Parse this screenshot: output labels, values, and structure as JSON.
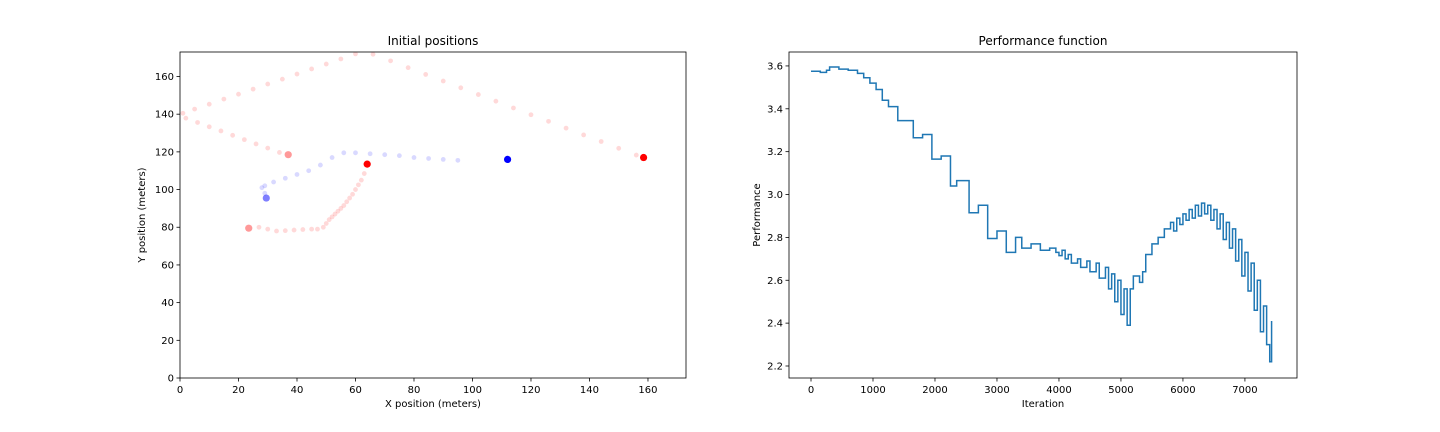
{
  "chart_data": [
    {
      "type": "scatter",
      "title": "Initial positions",
      "xlabel": "X position (meters)",
      "ylabel": "Y position (meters)",
      "xlim": [
        0,
        173
      ],
      "ylim": [
        0,
        173
      ],
      "xticks": [
        0,
        20,
        40,
        60,
        80,
        100,
        120,
        140,
        160
      ],
      "yticks": [
        0,
        20,
        40,
        60,
        80,
        100,
        120,
        140,
        160
      ],
      "series": [
        {
          "color": "#ff0000",
          "opacity": 0.15,
          "size": 2.4,
          "x": [
            34,
            30,
            26,
            22,
            18,
            14,
            10,
            6,
            2,
            1,
            5,
            10,
            15,
            20,
            25,
            30,
            35,
            40,
            45,
            50,
            55,
            60,
            66,
            72,
            78,
            84,
            90,
            96,
            102,
            108,
            114,
            120,
            126,
            132,
            138,
            144,
            150,
            156
          ],
          "values": [
            119.7,
            122,
            124.2,
            126.5,
            128.8,
            131.1,
            133.3,
            135.6,
            137.9,
            140.5,
            142.7,
            145.3,
            148,
            150.6,
            153.3,
            156,
            158.6,
            161.3,
            164,
            166.6,
            169.3,
            172,
            171.8,
            168.3,
            164.7,
            161.1,
            157.6,
            154,
            150.4,
            146.9,
            143.3,
            139.7,
            136.2,
            132.6,
            129,
            125.5,
            121.9,
            118.3
          ]
        },
        {
          "color": "#ff0000",
          "opacity": 0.15,
          "size": 2.4,
          "x": [
            27,
            30,
            33,
            36,
            39,
            42,
            45,
            47,
            49,
            50,
            51,
            52,
            53,
            54,
            55,
            56,
            57,
            58,
            59,
            60,
            61,
            62,
            63
          ],
          "values": [
            80,
            79,
            78,
            78.2,
            78.5,
            78.8,
            79,
            79,
            80,
            82,
            84,
            85.5,
            87,
            88.5,
            90,
            91.5,
            93.5,
            95.5,
            97.5,
            100,
            102.5,
            105,
            108.5
          ]
        },
        {
          "color": "#0000ff",
          "opacity": 0.15,
          "size": 2.4,
          "x": [
            29,
            28,
            29,
            32,
            36,
            40,
            44,
            48,
            52,
            56,
            60,
            65,
            70,
            75,
            80,
            85,
            90,
            95
          ],
          "values": [
            98,
            101,
            102,
            104,
            106,
            108,
            110,
            113,
            117,
            119.5,
            119.5,
            119,
            118.5,
            118,
            117,
            116.5,
            116,
            115.5
          ]
        },
        {
          "color": "#ff0000",
          "opacity": 0.4,
          "size": 3.6,
          "x": [
            37,
            23.5
          ],
          "values": [
            118.5,
            79.5
          ]
        },
        {
          "color": "#0000ff",
          "opacity": 0.5,
          "size": 3.6,
          "x": [
            29.5
          ],
          "values": [
            95.5
          ]
        },
        {
          "color": "#ff0000",
          "opacity": 1,
          "size": 3.6,
          "x": [
            64,
            158.5
          ],
          "values": [
            113.5,
            117
          ]
        },
        {
          "color": "#0000ff",
          "opacity": 1,
          "size": 3.6,
          "x": [
            112
          ],
          "values": [
            116
          ]
        }
      ]
    },
    {
      "type": "line",
      "drawstyle": "steps-post",
      "title": "Performance function",
      "xlabel": "Iteration",
      "ylabel": "Performance",
      "xlim": [
        -355,
        7840
      ],
      "ylim": [
        2.144,
        3.665
      ],
      "xticks": [
        0,
        1000,
        2000,
        3000,
        4000,
        5000,
        6000,
        7000
      ],
      "yticks": [
        2.2,
        2.4,
        2.6,
        2.8,
        {
          "value": 3,
          "label": "3.0"
        },
        3.2,
        3.4,
        3.6
      ],
      "series": [
        {
          "color": "#1f77b4",
          "x": [
            0,
            150,
            250,
            300,
            450,
            600,
            750,
            850,
            950,
            1050,
            1150,
            1250,
            1400,
            1650,
            1800,
            1950,
            2100,
            2250,
            2350,
            2550,
            2700,
            2850,
            3000,
            3150,
            3300,
            3400,
            3550,
            3700,
            3850,
            3950,
            4000,
            4050,
            4100,
            4150,
            4200,
            4300,
            4350,
            4450,
            4500,
            4600,
            4650,
            4750,
            4800,
            4850,
            4900,
            4950,
            5000,
            5050,
            5100,
            5150,
            5200,
            5300,
            5350,
            5400,
            5500,
            5600,
            5700,
            5800,
            5850,
            5900,
            5950,
            6000,
            6050,
            6100,
            6150,
            6200,
            6250,
            6300,
            6350,
            6400,
            6450,
            6500,
            6550,
            6600,
            6650,
            6700,
            6750,
            6800,
            6850,
            6900,
            6950,
            7000,
            7050,
            7100,
            7150,
            7200,
            7250,
            7300,
            7350,
            7400,
            7430
          ],
          "values": [
            3.575,
            3.57,
            3.58,
            3.595,
            3.585,
            3.58,
            3.565,
            3.545,
            3.52,
            3.49,
            3.44,
            3.41,
            3.345,
            3.265,
            3.28,
            3.165,
            3.18,
            3.04,
            3.065,
            2.915,
            2.95,
            2.795,
            2.83,
            2.73,
            2.8,
            2.75,
            2.77,
            2.74,
            2.75,
            2.73,
            2.715,
            2.74,
            2.7,
            2.72,
            2.68,
            2.7,
            2.66,
            2.69,
            2.64,
            2.68,
            2.61,
            2.66,
            2.56,
            2.63,
            2.5,
            2.6,
            2.44,
            2.56,
            2.39,
            2.56,
            2.62,
            2.59,
            2.64,
            2.72,
            2.77,
            2.8,
            2.84,
            2.87,
            2.83,
            2.89,
            2.86,
            2.91,
            2.88,
            2.93,
            2.89,
            2.95,
            2.9,
            2.96,
            2.91,
            2.95,
            2.88,
            2.93,
            2.84,
            2.91,
            2.79,
            2.87,
            2.75,
            2.84,
            2.69,
            2.79,
            2.62,
            2.73,
            2.55,
            2.68,
            2.46,
            2.6,
            2.36,
            2.48,
            2.3,
            2.22,
            2.41
          ]
        }
      ]
    }
  ]
}
